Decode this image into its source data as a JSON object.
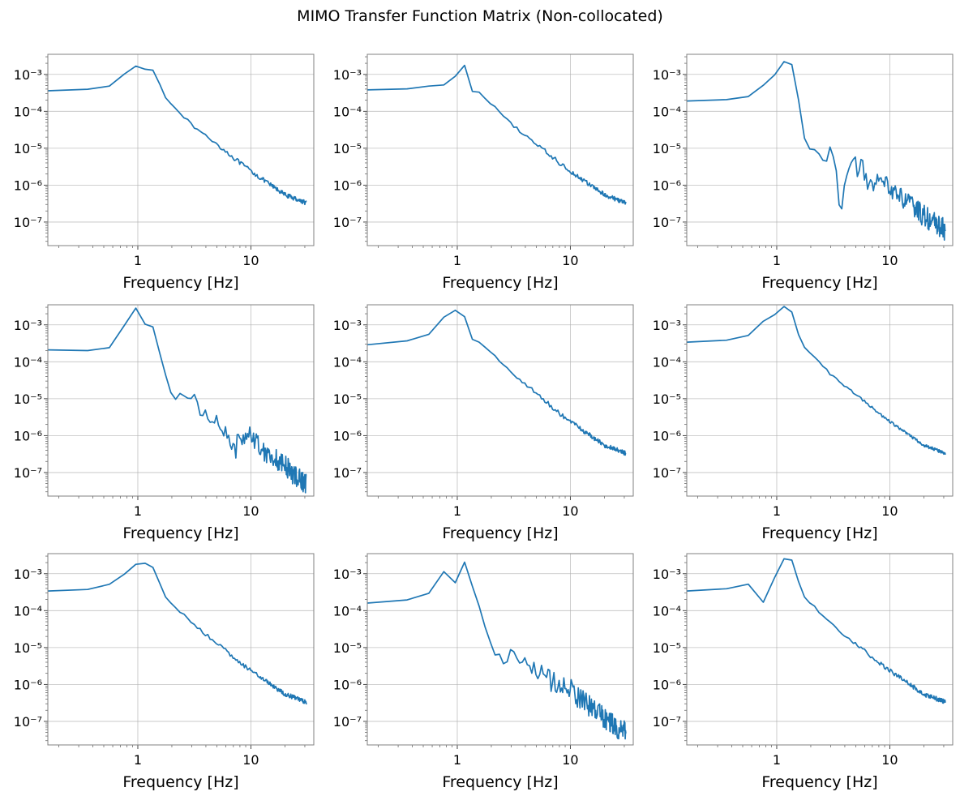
{
  "figure": {
    "title": "MIMO Transfer Function Matrix (Non-collocated)"
  },
  "chart_data": [
    {
      "type": "line",
      "xscale": "log",
      "yscale": "log",
      "xlabel": "Frequency [Hz]",
      "xlim": [
        0.16,
        36
      ],
      "ylim": [
        2.3e-08,
        0.0035
      ],
      "grid": true,
      "x_ticks": [
        {
          "value": 1,
          "label": "1"
        },
        {
          "value": 10,
          "label": "10"
        }
      ],
      "y_ticks": [
        {
          "value": 0.001,
          "label": "10⁻³"
        },
        {
          "value": 0.0001,
          "label": "10⁻⁴"
        },
        {
          "value": 1e-05,
          "label": "10⁻⁵"
        },
        {
          "value": 1e-06,
          "label": "10⁻⁶"
        },
        {
          "value": 1e-07,
          "label": "10⁻⁷"
        }
      ],
      "series": [
        {
          "color": "#1f77b4",
          "x": [
            0.16,
            0.4,
            0.6,
            0.8,
            1.0,
            1.2,
            1.4,
            1.6,
            1.8,
            2.2,
            3.0,
            5.0,
            8.0,
            12.0,
            20.0,
            31.0
          ],
          "y": [
            0.00036,
            0.0004,
            0.0005,
            0.0012,
            0.0018,
            0.0013,
            0.0013,
            0.00045,
            0.0002,
            0.00012,
            4.2e-05,
            1.3e-05,
            4e-06,
            1.6e-06,
            5.5e-07,
            3.3e-07
          ],
          "noise": 0.06
        }
      ]
    },
    {
      "type": "line",
      "xscale": "log",
      "yscale": "log",
      "xlabel": "Frequency [Hz]",
      "xlim": [
        0.16,
        36
      ],
      "ylim": [
        2.3e-08,
        0.0035
      ],
      "grid": true,
      "x_ticks": [
        {
          "value": 1,
          "label": "1"
        },
        {
          "value": 10,
          "label": "10"
        }
      ],
      "y_ticks": [
        {
          "value": 0.001,
          "label": "10⁻³"
        },
        {
          "value": 0.0001,
          "label": "10⁻⁴"
        },
        {
          "value": 1e-05,
          "label": "10⁻⁵"
        },
        {
          "value": 1e-06,
          "label": "10⁻⁶"
        },
        {
          "value": 1e-07,
          "label": "10⁻⁷"
        }
      ],
      "series": [
        {
          "color": "#1f77b4",
          "x": [
            0.16,
            0.4,
            0.6,
            0.8,
            1.0,
            1.2,
            1.4,
            1.6,
            1.8,
            2.2,
            3.0,
            5.0,
            8.0,
            12.0,
            20.0,
            31.0
          ],
          "y": [
            0.00038,
            0.00041,
            0.0005,
            0.00052,
            0.001,
            0.002,
            0.00023,
            0.00036,
            0.0002,
            0.00012,
            4.5e-05,
            1.3e-05,
            4e-06,
            1.6e-06,
            5.5e-07,
            3.3e-07
          ],
          "noise": 0.06
        }
      ]
    },
    {
      "type": "line",
      "xscale": "log",
      "yscale": "log",
      "xlabel": "Frequency [Hz]",
      "xlim": [
        0.16,
        36
      ],
      "ylim": [
        2.3e-08,
        0.0035
      ],
      "grid": true,
      "x_ticks": [
        {
          "value": 1,
          "label": "1"
        },
        {
          "value": 10,
          "label": "10"
        }
      ],
      "y_ticks": [
        {
          "value": 0.001,
          "label": "10⁻³"
        },
        {
          "value": 0.0001,
          "label": "10⁻⁴"
        },
        {
          "value": 1e-05,
          "label": "10⁻⁵"
        },
        {
          "value": 1e-06,
          "label": "10⁻⁶"
        },
        {
          "value": 1e-07,
          "label": "10⁻⁷"
        }
      ],
      "series": [
        {
          "color": "#1f77b4",
          "x": [
            0.16,
            0.4,
            0.6,
            1.0,
            1.2,
            1.4,
            1.8,
            2.2,
            2.4,
            2.8,
            3.0,
            3.2,
            3.7,
            4.0,
            4.5,
            5.0,
            5.5,
            6.0,
            7.0,
            8.0,
            10.0,
            12.0,
            15.0,
            20.0,
            25.0,
            31.0
          ],
          "y": [
            0.00019,
            0.00021,
            0.00026,
            0.0011,
            0.0026,
            0.0017,
            1.2e-05,
            7e-06,
            1.1e-05,
            3.3e-06,
            9e-06,
            7e-06,
            1.7e-07,
            2e-06,
            2.8e-06,
            3.2e-06,
            3e-06,
            2e-06,
            8e-07,
            1.1e-06,
            1e-06,
            5e-07,
            3e-07,
            1.5e-07,
            9e-08,
            6e-08
          ],
          "noise": 0.3
        }
      ]
    },
    {
      "type": "line",
      "xscale": "log",
      "yscale": "log",
      "xlabel": "Frequency [Hz]",
      "xlim": [
        0.16,
        36
      ],
      "ylim": [
        2.3e-08,
        0.0035
      ],
      "grid": true,
      "x_ticks": [
        {
          "value": 1,
          "label": "1"
        },
        {
          "value": 10,
          "label": "10"
        }
      ],
      "y_ticks": [
        {
          "value": 0.001,
          "label": "10⁻³"
        },
        {
          "value": 0.0001,
          "label": "10⁻⁴"
        },
        {
          "value": 1e-05,
          "label": "10⁻⁵"
        },
        {
          "value": 1e-06,
          "label": "10⁻⁶"
        },
        {
          "value": 1e-07,
          "label": "10⁻⁷"
        }
      ],
      "series": [
        {
          "color": "#1f77b4",
          "x": [
            0.16,
            0.4,
            0.6,
            0.8,
            1.0,
            1.2,
            1.4,
            1.6,
            1.8,
            2.0,
            2.2,
            2.4,
            2.7,
            3.0,
            3.2,
            3.6,
            4.0,
            5.0,
            6.0,
            7.0,
            8.0,
            10.0,
            12.0,
            15.0,
            20.0,
            25.0,
            31.0
          ],
          "y": [
            0.00021,
            0.0002,
            0.00025,
            0.0013,
            0.0034,
            0.0008,
            0.0009,
            0.00012,
            3.5e-05,
            1.2e-05,
            8e-06,
            1.5e-05,
            7e-06,
            1.1e-05,
            1e-05,
            4e-06,
            4.5e-06,
            2.5e-06,
            1.5e-06,
            3e-07,
            1e-06,
            1.2e-06,
            5e-07,
            3e-07,
            1.5e-07,
            8e-08,
            5e-08
          ],
          "noise": 0.3
        }
      ]
    },
    {
      "type": "line",
      "xscale": "log",
      "yscale": "log",
      "xlabel": "Frequency [Hz]",
      "xlim": [
        0.16,
        36
      ],
      "ylim": [
        2.3e-08,
        0.0035
      ],
      "grid": true,
      "x_ticks": [
        {
          "value": 1,
          "label": "1"
        },
        {
          "value": 10,
          "label": "10"
        }
      ],
      "y_ticks": [
        {
          "value": 0.001,
          "label": "10⁻³"
        },
        {
          "value": 0.0001,
          "label": "10⁻⁴"
        },
        {
          "value": 1e-05,
          "label": "10⁻⁵"
        },
        {
          "value": 1e-06,
          "label": "10⁻⁶"
        },
        {
          "value": 1e-07,
          "label": "10⁻⁷"
        }
      ],
      "series": [
        {
          "color": "#1f77b4",
          "x": [
            0.16,
            0.4,
            0.6,
            0.8,
            1.0,
            1.2,
            1.4,
            1.6,
            1.8,
            2.2,
            3.0,
            5.0,
            8.0,
            12.0,
            20.0,
            31.0
          ],
          "y": [
            0.00029,
            0.00038,
            0.0006,
            0.002,
            0.0026,
            0.0015,
            0.0003,
            0.00035,
            0.00023,
            0.00014,
            5e-05,
            1.4e-05,
            4e-06,
            1.6e-06,
            5.5e-07,
            3.3e-07
          ],
          "noise": 0.06
        }
      ]
    },
    {
      "type": "line",
      "xscale": "log",
      "yscale": "log",
      "xlabel": "Frequency [Hz]",
      "xlim": [
        0.16,
        36
      ],
      "ylim": [
        2.3e-08,
        0.0035
      ],
      "grid": true,
      "x_ticks": [
        {
          "value": 1,
          "label": "1"
        },
        {
          "value": 10,
          "label": "10"
        }
      ],
      "y_ticks": [
        {
          "value": 0.001,
          "label": "10⁻³"
        },
        {
          "value": 0.0001,
          "label": "10⁻⁴"
        },
        {
          "value": 1e-05,
          "label": "10⁻⁵"
        },
        {
          "value": 1e-06,
          "label": "10⁻⁶"
        },
        {
          "value": 1e-07,
          "label": "10⁻⁷"
        }
      ],
      "series": [
        {
          "color": "#1f77b4",
          "x": [
            0.16,
            0.4,
            0.6,
            0.8,
            1.0,
            1.2,
            1.4,
            1.6,
            1.8,
            2.2,
            3.0,
            5.0,
            8.0,
            12.0,
            20.0,
            31.0
          ],
          "y": [
            0.00034,
            0.00039,
            0.00055,
            0.0015,
            0.002,
            0.0035,
            0.002,
            0.0004,
            0.00022,
            0.00013,
            4.5e-05,
            1.3e-05,
            4e-06,
            1.6e-06,
            5.5e-07,
            3.3e-07
          ],
          "noise": 0.04
        }
      ]
    },
    {
      "type": "line",
      "xscale": "log",
      "yscale": "log",
      "xlabel": "Frequency [Hz]",
      "xlim": [
        0.16,
        36
      ],
      "ylim": [
        2.3e-08,
        0.0035
      ],
      "grid": true,
      "x_ticks": [
        {
          "value": 1,
          "label": "1"
        },
        {
          "value": 10,
          "label": "10"
        }
      ],
      "y_ticks": [
        {
          "value": 0.001,
          "label": "10⁻³"
        },
        {
          "value": 0.0001,
          "label": "10⁻⁴"
        },
        {
          "value": 1e-05,
          "label": "10⁻⁵"
        },
        {
          "value": 1e-06,
          "label": "10⁻⁶"
        },
        {
          "value": 1e-07,
          "label": "10⁻⁷"
        }
      ],
      "series": [
        {
          "color": "#1f77b4",
          "x": [
            0.16,
            0.4,
            0.6,
            0.8,
            1.0,
            1.2,
            1.4,
            1.6,
            1.8,
            2.2,
            3.0,
            5.0,
            8.0,
            12.0,
            20.0,
            31.0
          ],
          "y": [
            0.00034,
            0.00038,
            0.00055,
            0.0011,
            0.002,
            0.0019,
            0.0014,
            0.00045,
            0.0002,
            0.00012,
            4.5e-05,
            1.3e-05,
            4e-06,
            1.6e-06,
            5.5e-07,
            3.3e-07
          ],
          "noise": 0.06
        }
      ]
    },
    {
      "type": "line",
      "xscale": "log",
      "yscale": "log",
      "xlabel": "Frequency [Hz]",
      "xlim": [
        0.16,
        36
      ],
      "ylim": [
        2.3e-08,
        0.0035
      ],
      "grid": true,
      "x_ticks": [
        {
          "value": 1,
          "label": "1"
        },
        {
          "value": 10,
          "label": "10"
        }
      ],
      "y_ticks": [
        {
          "value": 0.001,
          "label": "10⁻³"
        },
        {
          "value": 0.0001,
          "label": "10⁻⁴"
        },
        {
          "value": 1e-05,
          "label": "10⁻⁵"
        },
        {
          "value": 1e-06,
          "label": "10⁻⁶"
        },
        {
          "value": 1e-07,
          "label": "10⁻⁷"
        }
      ],
      "series": [
        {
          "color": "#1f77b4",
          "x": [
            0.16,
            0.4,
            0.6,
            0.8,
            1.0,
            1.2,
            1.4,
            1.6,
            1.8,
            2.0,
            2.4,
            2.8,
            3.0,
            3.2,
            3.6,
            4.0,
            5.0,
            6.0,
            8.0,
            10.0,
            12.0,
            15.0,
            20.0,
            25.0,
            31.0
          ],
          "y": [
            0.00016,
            0.0002,
            0.00032,
            0.0015,
            0.00046,
            0.0029,
            0.0003,
            0.00011,
            2.8e-05,
            1.2e-05,
            6e-06,
            3.6e-06,
            1e-05,
            9e-06,
            4.5e-06,
            3.5e-06,
            2.2e-06,
            1.5e-06,
            1e-06,
            9e-07,
            4e-07,
            2.5e-07,
            1.2e-07,
            7e-08,
            5e-08
          ],
          "noise": 0.3
        }
      ]
    },
    {
      "type": "line",
      "xscale": "log",
      "yscale": "log",
      "xlabel": "Frequency [Hz]",
      "xlim": [
        0.16,
        36
      ],
      "ylim": [
        2.3e-08,
        0.0035
      ],
      "grid": true,
      "x_ticks": [
        {
          "value": 1,
          "label": "1"
        },
        {
          "value": 10,
          "label": "10"
        }
      ],
      "y_ticks": [
        {
          "value": 0.001,
          "label": "10⁻³"
        },
        {
          "value": 0.0001,
          "label": "10⁻⁴"
        },
        {
          "value": 1e-05,
          "label": "10⁻⁵"
        },
        {
          "value": 1e-06,
          "label": "10⁻⁶"
        },
        {
          "value": 1e-07,
          "label": "10⁻⁷"
        }
      ],
      "series": [
        {
          "color": "#1f77b4",
          "x": [
            0.16,
            0.4,
            0.6,
            0.8,
            1.0,
            1.2,
            1.4,
            1.6,
            1.8,
            2.2,
            3.0,
            5.0,
            8.0,
            12.0,
            20.0,
            31.0
          ],
          "y": [
            0.00034,
            0.0004,
            0.00055,
            0.00013,
            0.0012,
            0.003,
            0.0022,
            0.00045,
            0.0002,
            0.00012,
            4.5e-05,
            1.3e-05,
            4e-06,
            1.6e-06,
            5.5e-07,
            3.3e-07
          ],
          "noise": 0.06
        }
      ]
    }
  ]
}
